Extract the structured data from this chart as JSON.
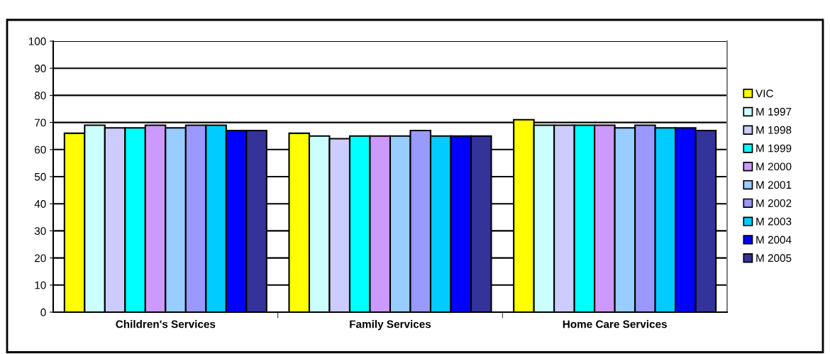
{
  "chart_data": {
    "type": "bar",
    "categories": [
      "Children's Services",
      "Family Services",
      "Home Care Services"
    ],
    "series": [
      {
        "name": "VIC",
        "color": "#ffff00",
        "values": [
          66,
          66,
          71
        ]
      },
      {
        "name": "M 1997",
        "color": "#ccffff",
        "values": [
          69,
          65,
          69
        ]
      },
      {
        "name": "M 1998",
        "color": "#ccccff",
        "values": [
          68,
          64,
          69
        ]
      },
      {
        "name": "M 1999",
        "color": "#00ffff",
        "values": [
          68,
          65,
          69
        ]
      },
      {
        "name": "M 2000",
        "color": "#cc99ff",
        "values": [
          69,
          65,
          69
        ]
      },
      {
        "name": "M 2001",
        "color": "#99ccff",
        "values": [
          68,
          65,
          68
        ]
      },
      {
        "name": "M 2002",
        "color": "#9999ff",
        "values": [
          69,
          67,
          69
        ]
      },
      {
        "name": "M 2003",
        "color": "#00ccff",
        "values": [
          69,
          65,
          68
        ]
      },
      {
        "name": "M 2004",
        "color": "#0000ff",
        "values": [
          67,
          65,
          68
        ]
      },
      {
        "name": "M 2005",
        "color": "#333399",
        "values": [
          67,
          65,
          67
        ]
      }
    ],
    "ylim": [
      0,
      100
    ],
    "yticks": [
      0,
      10,
      20,
      30,
      40,
      50,
      60,
      70,
      80,
      90,
      100
    ],
    "grid": "y",
    "legend": "right"
  }
}
